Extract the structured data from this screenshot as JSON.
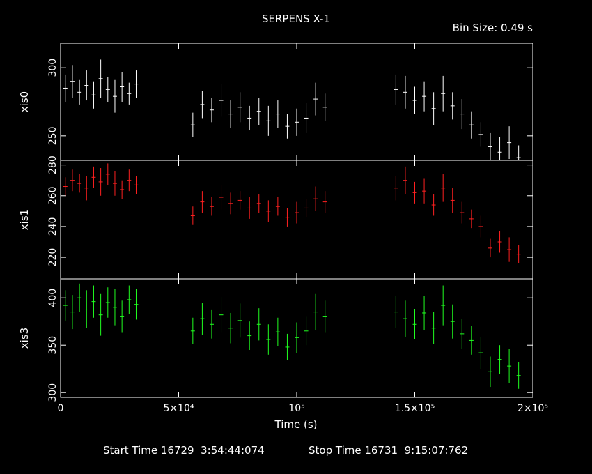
{
  "chart_data": {
    "type": "scatter",
    "title": "SERPENS X-1",
    "bin_size_label": "Bin Size: 0.49 s",
    "xlabel": "Time (s)",
    "xlim": [
      0,
      200000
    ],
    "x_ticks": [
      0,
      50000,
      100000,
      150000,
      200000
    ],
    "x_tick_labels": [
      "0",
      "5×10⁴",
      "10⁵",
      "1.5×10⁵",
      "2×10⁵"
    ],
    "start_time_label": "Start Time 16729  3:54:44:074",
    "stop_time_label": "Stop Time 16731  9:15:07:762",
    "panels": [
      {
        "name": "xis0",
        "ylabel": "xis0",
        "color": "#ffffff",
        "ylim": [
          232,
          318
        ],
        "y_ticks": [
          250,
          300
        ],
        "y_tick_labels": [
          "250",
          "300"
        ],
        "x": [
          2000,
          5000,
          8000,
          11000,
          14000,
          17000,
          20000,
          23000,
          26000,
          29000,
          32000,
          56000,
          60000,
          64000,
          68000,
          72000,
          76000,
          80000,
          84000,
          88000,
          92000,
          96000,
          100000,
          104000,
          108000,
          112000,
          142000,
          146000,
          150000,
          154000,
          158000,
          162000,
          166000,
          170000,
          174000,
          178000,
          182000,
          186000,
          190000,
          194000
        ],
        "values": [
          285,
          290,
          282,
          287,
          280,
          292,
          284,
          279,
          286,
          281,
          288,
          258,
          273,
          269,
          276,
          266,
          271,
          263,
          268,
          261,
          266,
          257,
          260,
          263,
          277,
          271,
          284,
          282,
          276,
          279,
          270,
          281,
          272,
          266,
          258,
          251,
          242,
          238,
          245,
          234
        ],
        "errors": [
          10,
          12,
          9,
          11,
          10,
          14,
          9,
          12,
          11,
          8,
          10,
          9,
          10,
          9,
          12,
          10,
          11,
          9,
          10,
          11,
          10,
          9,
          10,
          11,
          12,
          10,
          11,
          12,
          10,
          11,
          12,
          13,
          10,
          11,
          10,
          9,
          10,
          11,
          12,
          9
        ]
      },
      {
        "name": "xis1",
        "ylabel": "xis1",
        "color": "#ff2020",
        "ylim": [
          206,
          283
        ],
        "y_ticks": [
          220,
          240,
          260,
          280
        ],
        "y_tick_labels": [
          "220",
          "240",
          "260",
          "280"
        ],
        "x": [
          2000,
          5000,
          8000,
          11000,
          14000,
          17000,
          20000,
          23000,
          26000,
          29000,
          32000,
          56000,
          60000,
          64000,
          68000,
          72000,
          76000,
          80000,
          84000,
          88000,
          92000,
          96000,
          100000,
          104000,
          108000,
          112000,
          142000,
          146000,
          150000,
          154000,
          158000,
          162000,
          166000,
          170000,
          174000,
          178000,
          182000,
          186000,
          190000,
          194000
        ],
        "values": [
          266,
          270,
          268,
          265,
          272,
          269,
          274,
          268,
          264,
          270,
          267,
          247,
          256,
          253,
          259,
          255,
          257,
          252,
          255,
          250,
          253,
          246,
          249,
          252,
          258,
          256,
          265,
          270,
          262,
          263,
          254,
          265,
          257,
          249,
          245,
          240,
          226,
          230,
          225,
          222
        ],
        "errors": [
          6,
          7,
          6,
          8,
          7,
          9,
          7,
          8,
          6,
          7,
          6,
          6,
          7,
          6,
          8,
          7,
          6,
          7,
          6,
          7,
          6,
          6,
          7,
          6,
          8,
          7,
          8,
          9,
          7,
          8,
          7,
          9,
          8,
          7,
          6,
          7,
          6,
          7,
          8,
          6
        ]
      },
      {
        "name": "xis3",
        "ylabel": "xis3",
        "color": "#20ff20",
        "ylim": [
          295,
          420
        ],
        "y_ticks": [
          300,
          350,
          400
        ],
        "y_tick_labels": [
          "300",
          "350",
          "400"
        ],
        "x": [
          2000,
          5000,
          8000,
          11000,
          14000,
          17000,
          20000,
          23000,
          26000,
          29000,
          32000,
          56000,
          60000,
          64000,
          68000,
          72000,
          76000,
          80000,
          84000,
          88000,
          92000,
          96000,
          100000,
          104000,
          108000,
          112000,
          142000,
          146000,
          150000,
          154000,
          158000,
          162000,
          166000,
          170000,
          174000,
          178000,
          182000,
          186000,
          190000,
          194000
        ],
        "values": [
          392,
          385,
          400,
          388,
          396,
          382,
          395,
          390,
          380,
          398,
          393,
          365,
          378,
          372,
          382,
          368,
          376,
          360,
          372,
          356,
          364,
          348,
          358,
          365,
          385,
          380,
          385,
          378,
          372,
          384,
          368,
          392,
          375,
          362,
          355,
          342,
          322,
          335,
          328,
          318
        ],
        "errors": [
          16,
          18,
          15,
          20,
          17,
          22,
          16,
          19,
          17,
          15,
          16,
          14,
          17,
          15,
          19,
          16,
          18,
          15,
          17,
          16,
          15,
          14,
          16,
          15,
          19,
          17,
          17,
          19,
          16,
          18,
          17,
          21,
          18,
          16,
          15,
          17,
          16,
          15,
          18,
          14
        ]
      }
    ]
  }
}
